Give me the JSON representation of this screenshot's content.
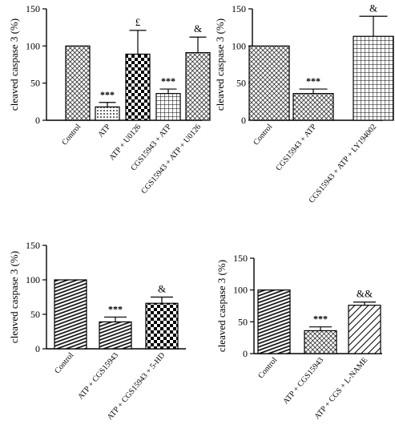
{
  "chart_data": [
    {
      "type": "bar",
      "ylabel": "cleaved caspase 3 (%)",
      "ylim": [
        0,
        150
      ],
      "yticks": [
        0,
        50,
        100,
        150
      ],
      "categories": [
        "Control",
        "ATP",
        "ATP + U0126",
        "CGS15943 + ATP",
        "CGS15943 + ATP + U0126"
      ],
      "values": [
        100,
        18,
        89,
        36,
        91
      ],
      "errors": [
        0,
        6,
        32,
        6,
        21
      ],
      "annotations": [
        "",
        "***",
        "£",
        "***",
        "&"
      ],
      "patterns": [
        "crosshatch-fine",
        "dots",
        "checker",
        "grid",
        "crosshatch-fine"
      ]
    },
    {
      "type": "bar",
      "ylabel": "cleaved caspase 3 (%)",
      "ylim": [
        0,
        150
      ],
      "yticks": [
        0,
        50,
        100,
        150
      ],
      "categories": [
        "Control",
        "CGS15943 + ATP",
        "CGS15943 + ATP + LY194002"
      ],
      "values": [
        100,
        36,
        113
      ],
      "errors": [
        0,
        6,
        27
      ],
      "annotations": [
        "",
        "***",
        "&"
      ],
      "patterns": [
        "crosshatch-fine",
        "crosshatch-fine",
        "grid"
      ]
    },
    {
      "type": "bar",
      "ylabel": "cleaved caspase 3 (%)",
      "ylim": [
        0,
        150
      ],
      "yticks": [
        0,
        50,
        100,
        150
      ],
      "categories": [
        "Control",
        "ATP + CGS15943",
        "ATP + CGS15943 + 5-HD"
      ],
      "values": [
        100,
        39,
        66
      ],
      "errors": [
        0,
        7,
        9
      ],
      "annotations": [
        "",
        "***",
        "&"
      ],
      "patterns": [
        "horizontal-lines",
        "horizontal-lines",
        "checker"
      ]
    },
    {
      "type": "bar",
      "ylabel": "cleaved caspase 3 (%)",
      "ylim": [
        0,
        150
      ],
      "yticks": [
        0,
        50,
        100,
        150
      ],
      "categories": [
        "Control",
        "ATP + CGS15943",
        "ATP + CGS + L-NAME"
      ],
      "values": [
        100,
        36,
        76
      ],
      "errors": [
        0,
        6,
        5
      ],
      "annotations": [
        "",
        "***",
        "&&"
      ],
      "patterns": [
        "horizontal-lines",
        "crosshatch-fine",
        "diagonal"
      ]
    }
  ]
}
